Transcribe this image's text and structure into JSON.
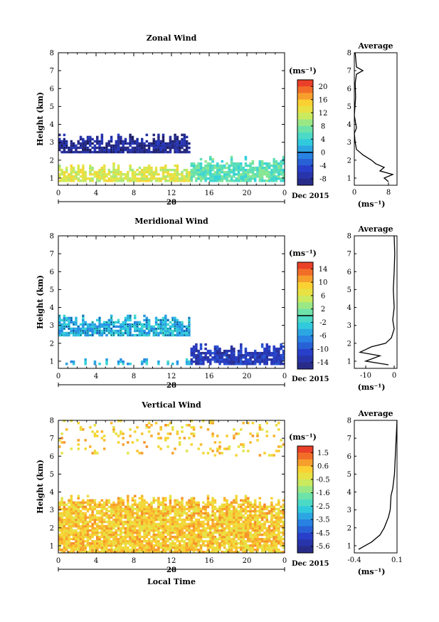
{
  "chart_data": [
    {
      "type": "heatmap",
      "title": "Zonal Wind",
      "xlabel": "",
      "ylabel": "Height (km)",
      "x_ticks": [
        "0",
        "4",
        "8",
        "12",
        "16",
        "20",
        "0"
      ],
      "y_ticks": [
        "1",
        "2",
        "3",
        "4",
        "5",
        "6",
        "7",
        "8"
      ],
      "xlim": [
        0,
        24
      ],
      "ylim": [
        0.6,
        8
      ],
      "date_label": "28",
      "month_label": "Dec 2015",
      "colorbar": {
        "unit": "(ms⁻¹)",
        "range": [
          -10,
          22
        ],
        "ticks": [
          "20",
          "16",
          "12",
          "8",
          "4",
          "0",
          "-4",
          "-8"
        ],
        "highlight": 0
      },
      "regions": [
        {
          "x": [
            0,
            14
          ],
          "y": [
            2.4,
            3.5
          ],
          "value": -8,
          "speckle": true
        },
        {
          "x": [
            0,
            14
          ],
          "y": [
            0.8,
            1.8
          ],
          "value": 12
        },
        {
          "x": [
            14,
            24
          ],
          "y": [
            0.8,
            2.2
          ],
          "value": 6
        }
      ],
      "profile": {
        "title": "Average",
        "xlabel": "(ms⁻¹)",
        "x_ticks": [
          "0",
          "8"
        ],
        "xlim": [
          0,
          10
        ],
        "points": [
          [
            8,
            0.8
          ],
          [
            7,
            1.0
          ],
          [
            9,
            1.2
          ],
          [
            6,
            1.4
          ],
          [
            7,
            1.6
          ],
          [
            5,
            1.8
          ],
          [
            4,
            2.0
          ],
          [
            2,
            2.3
          ],
          [
            0.5,
            2.6
          ],
          [
            0.2,
            3.0
          ],
          [
            0,
            3.5
          ],
          [
            0.5,
            3.8
          ],
          [
            0,
            4.5
          ],
          [
            0.3,
            5.5
          ],
          [
            0.2,
            6.3
          ],
          [
            0.5,
            6.8
          ],
          [
            2,
            7.0
          ],
          [
            0.5,
            7.2
          ],
          [
            0.2,
            8.0
          ]
        ]
      }
    },
    {
      "type": "heatmap",
      "title": "Meridional Wind",
      "xlabel": "",
      "ylabel": "Height (km)",
      "x_ticks": [
        "0",
        "4",
        "8",
        "12",
        "16",
        "20",
        "0"
      ],
      "y_ticks": [
        "1",
        "2",
        "3",
        "4",
        "5",
        "6",
        "7",
        "8"
      ],
      "xlim": [
        0,
        24
      ],
      "ylim": [
        0.6,
        8
      ],
      "date_label": "28",
      "month_label": "Dec 2015",
      "colorbar": {
        "unit": "(ms⁻¹)",
        "range": [
          -16,
          16
        ],
        "ticks": [
          "14",
          "10",
          "6",
          "2",
          "-2",
          "-6",
          "-10",
          "-14"
        ],
        "highlight": 0
      },
      "regions": [
        {
          "x": [
            0,
            14
          ],
          "y": [
            2.4,
            3.6
          ],
          "value": -4,
          "speckle": true
        },
        {
          "x": [
            14,
            24
          ],
          "y": [
            0.8,
            2.0
          ],
          "value": -12
        },
        {
          "x": [
            0,
            14
          ],
          "y": [
            0.8,
            1.1
          ],
          "value": -4
        }
      ],
      "profile": {
        "title": "Average",
        "xlabel": "(ms⁻¹)",
        "x_ticks": [
          "-10",
          "0"
        ],
        "xlim": [
          -14,
          1
        ],
        "points": [
          [
            -2,
            0.8
          ],
          [
            -10,
            1.0
          ],
          [
            -5,
            1.3
          ],
          [
            -12,
            1.5
          ],
          [
            -8,
            1.8
          ],
          [
            -3,
            2.0
          ],
          [
            -1,
            2.3
          ],
          [
            0,
            2.8
          ],
          [
            -0.5,
            3.3
          ],
          [
            0,
            4.0
          ],
          [
            -0.3,
            5.0
          ],
          [
            0,
            6.0
          ],
          [
            0.2,
            7.0
          ],
          [
            0,
            8.0
          ]
        ]
      }
    },
    {
      "type": "heatmap",
      "title": "Vertical Wind",
      "xlabel": "Local Time",
      "ylabel": "Height (km)",
      "x_ticks": [
        "0",
        "4",
        "8",
        "12",
        "16",
        "20",
        "0"
      ],
      "y_ticks": [
        "1",
        "2",
        "3",
        "4",
        "5",
        "6",
        "7",
        "8"
      ],
      "xlim": [
        0,
        24
      ],
      "ylim": [
        0.6,
        8
      ],
      "date_label": "28",
      "month_label": "Dec 2015",
      "colorbar": {
        "unit": "(ms⁻¹)",
        "range": [
          -6.1,
          2.1
        ],
        "ticks": [
          "1.5",
          "0.6",
          "-0.5",
          "-1.6",
          "-2.5",
          "-3.5",
          "-4.5",
          "-5.6"
        ],
        "highlight": null
      },
      "regions": [
        {
          "x": [
            0,
            24
          ],
          "y": [
            0.6,
            3.8
          ],
          "value": 0.3
        },
        {
          "x": [
            0,
            24
          ],
          "y": [
            6.0,
            8.0
          ],
          "value": 0.3,
          "sparse": true
        }
      ],
      "profile": {
        "title": "Average",
        "xlabel": "(ms⁻¹)",
        "x_ticks": [
          "-0.4",
          "0.1"
        ],
        "xlim": [
          -0.4,
          0.1
        ],
        "points": [
          [
            -0.35,
            0.8
          ],
          [
            -0.2,
            1.2
          ],
          [
            -0.1,
            1.6
          ],
          [
            -0.05,
            2.0
          ],
          [
            0,
            2.6
          ],
          [
            0.02,
            3.0
          ],
          [
            0.03,
            3.8
          ],
          [
            0.05,
            4.2
          ],
          [
            0.07,
            5.0
          ],
          [
            0.08,
            6.0
          ],
          [
            0.09,
            7.0
          ],
          [
            0.1,
            8.0
          ]
        ]
      }
    }
  ]
}
